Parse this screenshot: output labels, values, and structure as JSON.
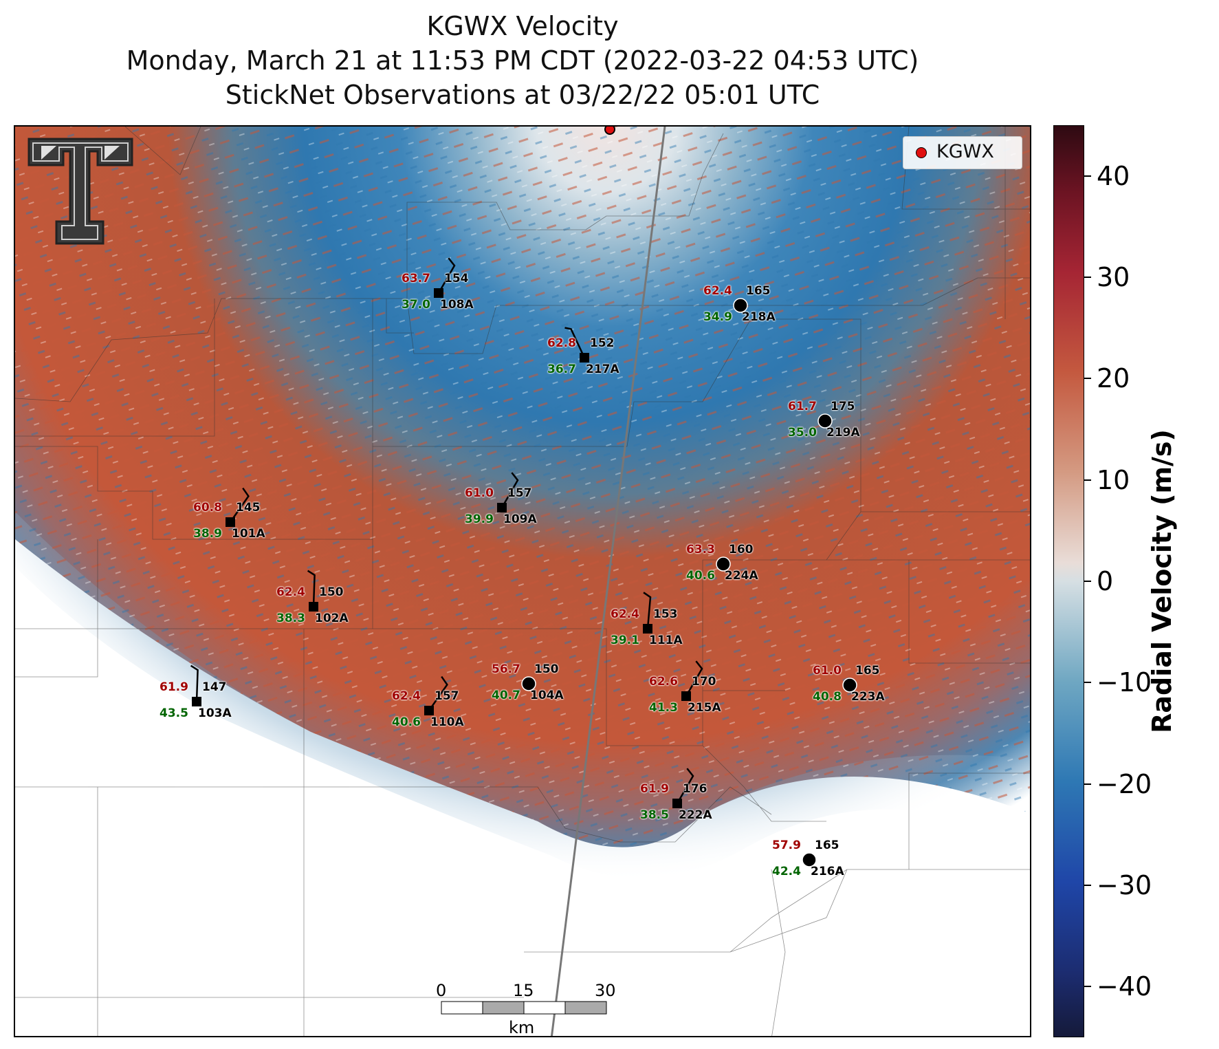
{
  "title": {
    "line1": "KGWX Velocity",
    "line2": "Monday, March 21 at 11:53 PM CDT (2022-03-22 04:53 UTC)",
    "line3": "StickNet Observations at 03/22/22 05:01 UTC"
  },
  "legend": {
    "label": "KGWX",
    "marker_color": "#e01010"
  },
  "colorbar": {
    "label": "Radial Velocity (m/s)",
    "ticks": [
      {
        "value": 40,
        "label": "40"
      },
      {
        "value": 30,
        "label": "30"
      },
      {
        "value": 20,
        "label": "20"
      },
      {
        "value": 10,
        "label": "10"
      },
      {
        "value": 0,
        "label": "0"
      },
      {
        "value": -10,
        "label": "−10"
      },
      {
        "value": -20,
        "label": "−20"
      },
      {
        "value": -30,
        "label": "−30"
      },
      {
        "value": -40,
        "label": "−40"
      }
    ],
    "range": [
      -45,
      45
    ]
  },
  "scale_bar": {
    "ticks": [
      "0",
      "15",
      "30"
    ],
    "unit": "km"
  },
  "logo": "texas-tech-double-t-logo",
  "stations": [
    {
      "id": "108A",
      "temp": "63.7",
      "dew": "37.0",
      "pres": "154",
      "marker": "square"
    },
    {
      "id": "218A",
      "temp": "62.4",
      "dew": "34.9",
      "pres": "165",
      "marker": "circle"
    },
    {
      "id": "217A",
      "temp": "62.8",
      "dew": "36.7",
      "pres": "152",
      "marker": "square"
    },
    {
      "id": "219A",
      "temp": "61.7",
      "dew": "35.0",
      "pres": "175",
      "marker": "circle"
    },
    {
      "id": "101A",
      "temp": "60.8",
      "dew": "38.9",
      "pres": "145",
      "marker": "square"
    },
    {
      "id": "109A",
      "temp": "61.0",
      "dew": "39.9",
      "pres": "157",
      "marker": "square"
    },
    {
      "id": "224A",
      "temp": "63.3",
      "dew": "40.6",
      "pres": "160",
      "marker": "circle"
    },
    {
      "id": "102A",
      "temp": "62.4",
      "dew": "38.3",
      "pres": "150",
      "marker": "square"
    },
    {
      "id": "111A",
      "temp": "62.4",
      "dew": "39.1",
      "pres": "153",
      "marker": "square"
    },
    {
      "id": "104A",
      "temp": "56.7",
      "dew": "40.7",
      "pres": "150",
      "marker": "circle"
    },
    {
      "id": "215A",
      "temp": "62.6",
      "dew": "41.3",
      "pres": "170",
      "marker": "square"
    },
    {
      "id": "223A",
      "temp": "61.0",
      "dew": "40.8",
      "pres": "165",
      "marker": "circle"
    },
    {
      "id": "103A",
      "temp": "61.9",
      "dew": "43.5",
      "pres": "147",
      "marker": "square"
    },
    {
      "id": "110A",
      "temp": "62.4",
      "dew": "40.6",
      "pres": "157",
      "marker": "square"
    },
    {
      "id": "222A",
      "temp": "61.9",
      "dew": "38.5",
      "pres": "176",
      "marker": "square"
    },
    {
      "id": "216A",
      "temp": "57.9",
      "dew": "42.4",
      "pres": "165",
      "marker": "circle"
    }
  ]
}
